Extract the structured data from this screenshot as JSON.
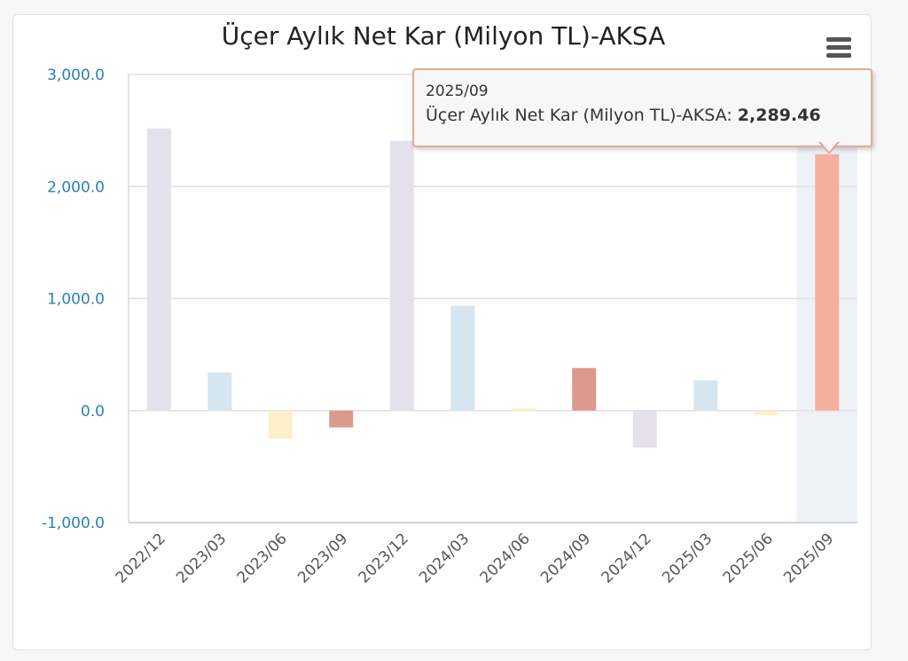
{
  "chart_data": {
    "type": "bar",
    "title": "Üçer Aylık Net Kar (Milyon TL)-AKSA",
    "xlabel": "",
    "ylabel": "",
    "ylim": [
      -1000,
      3000
    ],
    "yticks": [
      -1000,
      0,
      1000,
      2000,
      3000
    ],
    "ytick_labels": [
      "-1,000.0",
      "0.0",
      "1,000.0",
      "2,000.0",
      "3,000.0"
    ],
    "grid": true,
    "categories": [
      "2022/12",
      "2023/03",
      "2023/06",
      "2023/09",
      "2023/12",
      "2024/03",
      "2024/06",
      "2024/09",
      "2024/12",
      "2025/03",
      "2025/06",
      "2025/09"
    ],
    "values": [
      2520,
      340,
      -250,
      -150,
      2410,
      935,
      20,
      380,
      -330,
      270,
      -40,
      2289.46
    ],
    "colors": [
      "#e4e1ec",
      "#d5e6f1",
      "#fbf0c9",
      "#dc9a8c",
      "#e4e1ec",
      "#d5e6f1",
      "#fbf0c9",
      "#dc9a8c",
      "#e4e1ec",
      "#d5e6f1",
      "#fbf0c9",
      "#f5b09d"
    ],
    "highlighted_category": "2025/09",
    "highlight_color": "#eef1f6"
  },
  "tooltip": {
    "date": "2025/09",
    "series_label": "Üçer Aylık Net Kar (Milyon TL)-AKSA: ",
    "value": "2,289.46"
  },
  "menu_icon": "hamburger-menu-icon"
}
